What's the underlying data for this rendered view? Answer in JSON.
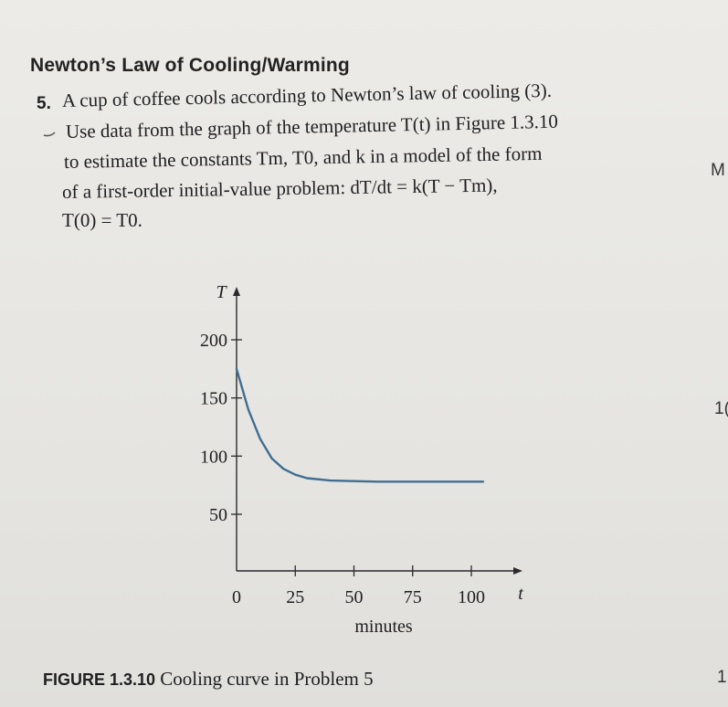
{
  "heading": "Newton’s Law of Cooling/Warming",
  "problem": {
    "number": "5.",
    "lines": [
      "A cup of coffee cools according to Newton’s law of cooling (3).",
      "Use data from the graph of the temperature T(t) in Figure 1.3.10",
      "to estimate the constants Tm, T0, and k in a model of the form",
      "of a first-order initial-value problem: dT/dt = k(T − Tm),",
      "T(0) = T0."
    ]
  },
  "figure": {
    "label": "FIGURE 1.3.10",
    "caption": "Cooling curve in Problem 5"
  },
  "margin_text": {
    "right_1": "M",
    "right_2": "1(",
    "right_3": "1"
  },
  "chart_data": {
    "type": "line",
    "ylabel": "T",
    "xlabel": "minutes",
    "xaxis_symbol": "t",
    "x_ticks": [
      0,
      25,
      50,
      75,
      100
    ],
    "y_ticks": [
      50,
      100,
      150,
      200
    ],
    "xlim": [
      0,
      100
    ],
    "ylim": [
      0,
      200
    ],
    "series": [
      {
        "x": [
          0,
          5,
          10,
          15,
          20,
          25,
          30,
          40,
          50,
          60,
          75,
          90,
          100,
          105
        ],
        "values": [
          175,
          140,
          115,
          98,
          89,
          84,
          81,
          79,
          78.5,
          78,
          78,
          78,
          78,
          78
        ]
      }
    ]
  }
}
